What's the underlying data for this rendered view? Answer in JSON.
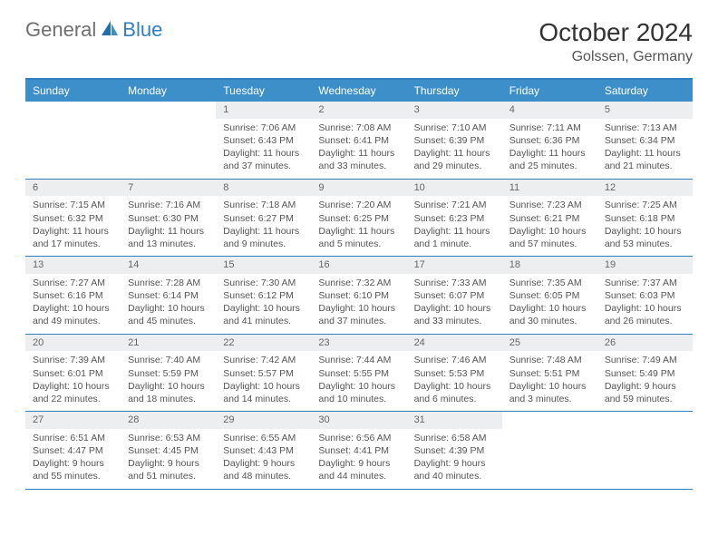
{
  "logo": {
    "general": "General",
    "blue": "Blue"
  },
  "title": "October 2024",
  "location": "Golssen, Germany",
  "colors": {
    "header_bg": "#3d8fc9",
    "border": "#2f7fc1",
    "daynum_bg": "#eceef0",
    "text": "#555555"
  },
  "day_headers": [
    "Sunday",
    "Monday",
    "Tuesday",
    "Wednesday",
    "Thursday",
    "Friday",
    "Saturday"
  ],
  "weeks": [
    [
      {
        "num": "",
        "sunrise": "",
        "sunset": "",
        "daylight": ""
      },
      {
        "num": "",
        "sunrise": "",
        "sunset": "",
        "daylight": ""
      },
      {
        "num": "1",
        "sunrise": "Sunrise: 7:06 AM",
        "sunset": "Sunset: 6:43 PM",
        "daylight": "Daylight: 11 hours and 37 minutes."
      },
      {
        "num": "2",
        "sunrise": "Sunrise: 7:08 AM",
        "sunset": "Sunset: 6:41 PM",
        "daylight": "Daylight: 11 hours and 33 minutes."
      },
      {
        "num": "3",
        "sunrise": "Sunrise: 7:10 AM",
        "sunset": "Sunset: 6:39 PM",
        "daylight": "Daylight: 11 hours and 29 minutes."
      },
      {
        "num": "4",
        "sunrise": "Sunrise: 7:11 AM",
        "sunset": "Sunset: 6:36 PM",
        "daylight": "Daylight: 11 hours and 25 minutes."
      },
      {
        "num": "5",
        "sunrise": "Sunrise: 7:13 AM",
        "sunset": "Sunset: 6:34 PM",
        "daylight": "Daylight: 11 hours and 21 minutes."
      }
    ],
    [
      {
        "num": "6",
        "sunrise": "Sunrise: 7:15 AM",
        "sunset": "Sunset: 6:32 PM",
        "daylight": "Daylight: 11 hours and 17 minutes."
      },
      {
        "num": "7",
        "sunrise": "Sunrise: 7:16 AM",
        "sunset": "Sunset: 6:30 PM",
        "daylight": "Daylight: 11 hours and 13 minutes."
      },
      {
        "num": "8",
        "sunrise": "Sunrise: 7:18 AM",
        "sunset": "Sunset: 6:27 PM",
        "daylight": "Daylight: 11 hours and 9 minutes."
      },
      {
        "num": "9",
        "sunrise": "Sunrise: 7:20 AM",
        "sunset": "Sunset: 6:25 PM",
        "daylight": "Daylight: 11 hours and 5 minutes."
      },
      {
        "num": "10",
        "sunrise": "Sunrise: 7:21 AM",
        "sunset": "Sunset: 6:23 PM",
        "daylight": "Daylight: 11 hours and 1 minute."
      },
      {
        "num": "11",
        "sunrise": "Sunrise: 7:23 AM",
        "sunset": "Sunset: 6:21 PM",
        "daylight": "Daylight: 10 hours and 57 minutes."
      },
      {
        "num": "12",
        "sunrise": "Sunrise: 7:25 AM",
        "sunset": "Sunset: 6:18 PM",
        "daylight": "Daylight: 10 hours and 53 minutes."
      }
    ],
    [
      {
        "num": "13",
        "sunrise": "Sunrise: 7:27 AM",
        "sunset": "Sunset: 6:16 PM",
        "daylight": "Daylight: 10 hours and 49 minutes."
      },
      {
        "num": "14",
        "sunrise": "Sunrise: 7:28 AM",
        "sunset": "Sunset: 6:14 PM",
        "daylight": "Daylight: 10 hours and 45 minutes."
      },
      {
        "num": "15",
        "sunrise": "Sunrise: 7:30 AM",
        "sunset": "Sunset: 6:12 PM",
        "daylight": "Daylight: 10 hours and 41 minutes."
      },
      {
        "num": "16",
        "sunrise": "Sunrise: 7:32 AM",
        "sunset": "Sunset: 6:10 PM",
        "daylight": "Daylight: 10 hours and 37 minutes."
      },
      {
        "num": "17",
        "sunrise": "Sunrise: 7:33 AM",
        "sunset": "Sunset: 6:07 PM",
        "daylight": "Daylight: 10 hours and 33 minutes."
      },
      {
        "num": "18",
        "sunrise": "Sunrise: 7:35 AM",
        "sunset": "Sunset: 6:05 PM",
        "daylight": "Daylight: 10 hours and 30 minutes."
      },
      {
        "num": "19",
        "sunrise": "Sunrise: 7:37 AM",
        "sunset": "Sunset: 6:03 PM",
        "daylight": "Daylight: 10 hours and 26 minutes."
      }
    ],
    [
      {
        "num": "20",
        "sunrise": "Sunrise: 7:39 AM",
        "sunset": "Sunset: 6:01 PM",
        "daylight": "Daylight: 10 hours and 22 minutes."
      },
      {
        "num": "21",
        "sunrise": "Sunrise: 7:40 AM",
        "sunset": "Sunset: 5:59 PM",
        "daylight": "Daylight: 10 hours and 18 minutes."
      },
      {
        "num": "22",
        "sunrise": "Sunrise: 7:42 AM",
        "sunset": "Sunset: 5:57 PM",
        "daylight": "Daylight: 10 hours and 14 minutes."
      },
      {
        "num": "23",
        "sunrise": "Sunrise: 7:44 AM",
        "sunset": "Sunset: 5:55 PM",
        "daylight": "Daylight: 10 hours and 10 minutes."
      },
      {
        "num": "24",
        "sunrise": "Sunrise: 7:46 AM",
        "sunset": "Sunset: 5:53 PM",
        "daylight": "Daylight: 10 hours and 6 minutes."
      },
      {
        "num": "25",
        "sunrise": "Sunrise: 7:48 AM",
        "sunset": "Sunset: 5:51 PM",
        "daylight": "Daylight: 10 hours and 3 minutes."
      },
      {
        "num": "26",
        "sunrise": "Sunrise: 7:49 AM",
        "sunset": "Sunset: 5:49 PM",
        "daylight": "Daylight: 9 hours and 59 minutes."
      }
    ],
    [
      {
        "num": "27",
        "sunrise": "Sunrise: 6:51 AM",
        "sunset": "Sunset: 4:47 PM",
        "daylight": "Daylight: 9 hours and 55 minutes."
      },
      {
        "num": "28",
        "sunrise": "Sunrise: 6:53 AM",
        "sunset": "Sunset: 4:45 PM",
        "daylight": "Daylight: 9 hours and 51 minutes."
      },
      {
        "num": "29",
        "sunrise": "Sunrise: 6:55 AM",
        "sunset": "Sunset: 4:43 PM",
        "daylight": "Daylight: 9 hours and 48 minutes."
      },
      {
        "num": "30",
        "sunrise": "Sunrise: 6:56 AM",
        "sunset": "Sunset: 4:41 PM",
        "daylight": "Daylight: 9 hours and 44 minutes."
      },
      {
        "num": "31",
        "sunrise": "Sunrise: 6:58 AM",
        "sunset": "Sunset: 4:39 PM",
        "daylight": "Daylight: 9 hours and 40 minutes."
      },
      {
        "num": "",
        "sunrise": "",
        "sunset": "",
        "daylight": ""
      },
      {
        "num": "",
        "sunrise": "",
        "sunset": "",
        "daylight": ""
      }
    ]
  ]
}
